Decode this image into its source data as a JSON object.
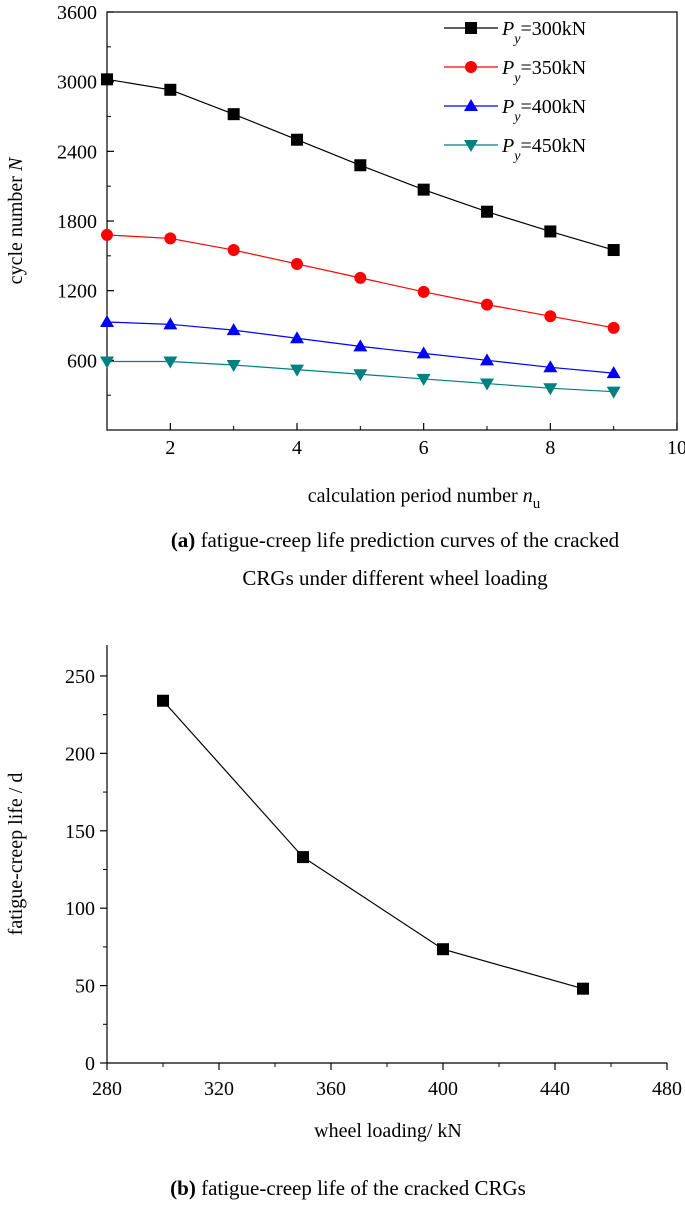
{
  "chart_data": [
    {
      "type": "line",
      "x": [
        1,
        2,
        3,
        4,
        5,
        6,
        7,
        8,
        9
      ],
      "xlabel": "calculation period number n",
      "xlabel_main": "calculation period number ",
      "xlabel_var": "n",
      "xlabel_sub": "u",
      "ylabel": "cycle number N",
      "ylabel_main": "cycle number ",
      "ylabel_var": "N",
      "xlim": [
        1,
        10
      ],
      "ylim": [
        0,
        3600
      ],
      "xticks": [
        2,
        4,
        6,
        8,
        10
      ],
      "yticks": [
        600,
        1200,
        1800,
        2400,
        3000,
        3600
      ],
      "legend_position": "top-right",
      "series": [
        {
          "name": "Py=300kN",
          "legend_main": "P",
          "legend_sub": "y",
          "legend_rest": "=300kN",
          "color": "#000000",
          "marker": "square",
          "values": [
            3020,
            2930,
            2720,
            2500,
            2280,
            2070,
            1880,
            1710,
            1550
          ]
        },
        {
          "name": "Py=350kN",
          "legend_main": "P",
          "legend_sub": "y",
          "legend_rest": "=350kN",
          "color": "#ff0000",
          "marker": "circle",
          "values": [
            1680,
            1650,
            1550,
            1430,
            1310,
            1190,
            1080,
            980,
            880
          ]
        },
        {
          "name": "Py=400kN",
          "legend_main": "P",
          "legend_sub": "y",
          "legend_rest": "=400kN",
          "color": "#0000ff",
          "marker": "triangle-up",
          "values": [
            930,
            910,
            860,
            790,
            720,
            660,
            600,
            540,
            490
          ]
        },
        {
          "name": "Py=450kN",
          "legend_main": "P",
          "legend_sub": "y",
          "legend_rest": "=450kN",
          "color": "#008080",
          "marker": "triangle-down",
          "values": [
            590,
            590,
            560,
            520,
            480,
            440,
            400,
            360,
            330
          ]
        }
      ],
      "caption_label": "(a)",
      "caption_line1": " fatigue-creep life prediction curves of the cracked",
      "caption_line2": "CRGs under different wheel loading"
    },
    {
      "type": "line",
      "x": [
        300,
        350,
        400,
        450
      ],
      "xlabel": "wheel loading/ kN",
      "ylabel": "fatigue-creep life / d",
      "xlim": [
        280,
        480
      ],
      "ylim": [
        0,
        270
      ],
      "xticks": [
        280,
        320,
        360,
        400,
        440,
        480
      ],
      "yticks": [
        0,
        50,
        100,
        150,
        200,
        250
      ],
      "series": [
        {
          "name": "fatigue-creep life",
          "color": "#000000",
          "marker": "square",
          "values": [
            234,
            133,
            73.5,
            48
          ]
        }
      ],
      "caption_label": "(b)",
      "caption_line1": " fatigue-creep life of the cracked CRGs"
    }
  ]
}
